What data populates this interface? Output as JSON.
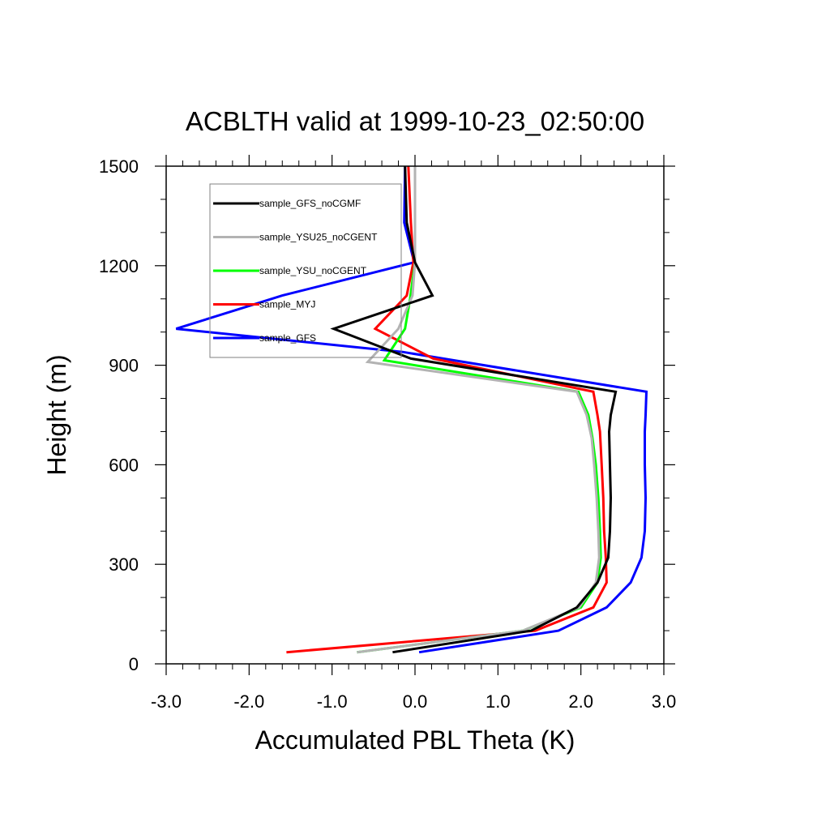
{
  "chart_data": {
    "type": "line",
    "title": "ACBLTH valid at 1999-10-23_02:50:00",
    "xlabel": "Accumulated PBL Theta (K)",
    "ylabel": "Height (m)",
    "xlim": [
      -3.0,
      3.0
    ],
    "ylim": [
      0,
      1500
    ],
    "xticks": [
      -3.0,
      -2.0,
      -1.0,
      0.0,
      1.0,
      2.0,
      3.0
    ],
    "xtick_labels": [
      "-3.0",
      "-2.0",
      "-1.0",
      "0.0",
      "1.0",
      "2.0",
      "3.0"
    ],
    "yticks": [
      0,
      300,
      600,
      900,
      1200,
      1500
    ],
    "ytick_labels": [
      "0",
      "300",
      "600",
      "900",
      "1200",
      "1500"
    ],
    "grid": false,
    "legend_position": "top-left",
    "series": [
      {
        "name": "sample_GFS_noCGMF",
        "color": "#000000",
        "points": [
          [
            -0.27,
            35
          ],
          [
            1.4,
            100
          ],
          [
            1.95,
            170
          ],
          [
            2.2,
            245
          ],
          [
            2.33,
            320
          ],
          [
            2.35,
            400
          ],
          [
            2.36,
            500
          ],
          [
            2.35,
            600
          ],
          [
            2.34,
            700
          ],
          [
            2.36,
            750
          ],
          [
            2.42,
            820
          ],
          [
            -0.05,
            920
          ],
          [
            -0.98,
            1010
          ],
          [
            0.21,
            1110
          ],
          [
            0.0,
            1210
          ],
          [
            -0.1,
            1330
          ],
          [
            -0.12,
            1500
          ]
        ]
      },
      {
        "name": "sample_YSU25_noCGENT",
        "color": "#b3b3b3",
        "points": [
          [
            -0.7,
            35
          ],
          [
            1.3,
            100
          ],
          [
            1.98,
            170
          ],
          [
            2.18,
            245
          ],
          [
            2.22,
            320
          ],
          [
            2.21,
            400
          ],
          [
            2.19,
            500
          ],
          [
            2.16,
            600
          ],
          [
            2.13,
            680
          ],
          [
            2.07,
            750
          ],
          [
            1.95,
            820
          ],
          [
            -0.57,
            910
          ],
          [
            -0.2,
            1010
          ],
          [
            -0.03,
            1110
          ],
          [
            0.0,
            1210
          ],
          [
            0.0,
            1330
          ],
          [
            0.0,
            1500
          ]
        ]
      },
      {
        "name": "sample_YSU_noCGENT",
        "color": "#00ff00",
        "points": [
          [
            -0.7,
            35
          ],
          [
            1.3,
            100
          ],
          [
            2.0,
            170
          ],
          [
            2.2,
            245
          ],
          [
            2.24,
            320
          ],
          [
            2.23,
            400
          ],
          [
            2.21,
            500
          ],
          [
            2.18,
            600
          ],
          [
            2.14,
            680
          ],
          [
            2.09,
            750
          ],
          [
            1.97,
            820
          ],
          [
            -0.37,
            915
          ],
          [
            -0.12,
            1010
          ],
          [
            -0.06,
            1100
          ],
          [
            0.0,
            1210
          ],
          [
            0.0,
            1330
          ],
          [
            0.0,
            1500
          ]
        ]
      },
      {
        "name": "sample_MYJ",
        "color": "#ff0000",
        "points": [
          [
            -1.55,
            35
          ],
          [
            1.45,
            100
          ],
          [
            2.15,
            170
          ],
          [
            2.31,
            245
          ],
          [
            2.3,
            320
          ],
          [
            2.28,
            400
          ],
          [
            2.27,
            500
          ],
          [
            2.25,
            600
          ],
          [
            2.23,
            700
          ],
          [
            2.2,
            750
          ],
          [
            2.15,
            820
          ],
          [
            0.22,
            920
          ],
          [
            -0.48,
            1010
          ],
          [
            -0.1,
            1110
          ],
          [
            -0.02,
            1210
          ],
          [
            -0.05,
            1330
          ],
          [
            -0.08,
            1500
          ]
        ]
      },
      {
        "name": "sample_GFS",
        "color": "#0000ff",
        "points": [
          [
            0.05,
            35
          ],
          [
            1.73,
            100
          ],
          [
            2.31,
            170
          ],
          [
            2.6,
            245
          ],
          [
            2.73,
            320
          ],
          [
            2.77,
            400
          ],
          [
            2.78,
            500
          ],
          [
            2.77,
            600
          ],
          [
            2.77,
            700
          ],
          [
            2.78,
            750
          ],
          [
            2.79,
            820
          ],
          [
            -0.15,
            940
          ],
          [
            -2.88,
            1010
          ],
          [
            -1.6,
            1110
          ],
          [
            -0.01,
            1210
          ],
          [
            -0.13,
            1330
          ],
          [
            -0.12,
            1500
          ]
        ]
      }
    ]
  }
}
